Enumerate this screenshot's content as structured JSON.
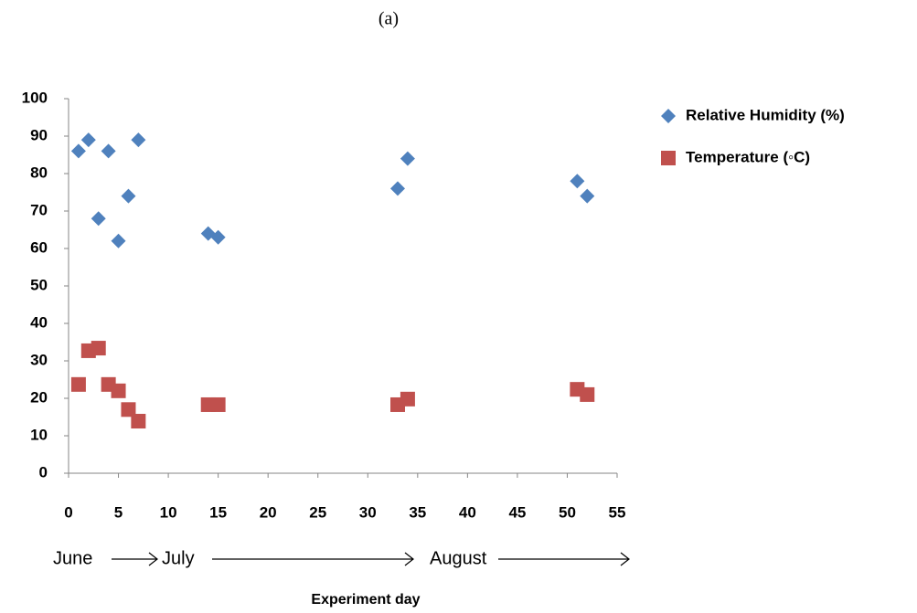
{
  "chart_data": {
    "type": "scatter",
    "panel_label": "(a)",
    "x_label": "Experiment day",
    "annotations": [
      "June",
      "July",
      "August"
    ],
    "series": [
      {
        "name": "Relative Humidity (%)",
        "color": "#4f81bd",
        "marker": "diamond",
        "x": [
          1,
          2,
          3,
          4,
          5,
          6,
          7,
          14,
          15,
          33,
          34,
          51,
          52
        ],
        "values": [
          86,
          89,
          68,
          86,
          62,
          74,
          89,
          64,
          63,
          76,
          84,
          78,
          74
        ]
      },
      {
        "name": "Temperature (◦C)",
        "color": "#c0504d",
        "marker": "square",
        "x": [
          1,
          2,
          3,
          4,
          5,
          6,
          7,
          14,
          15,
          33,
          34,
          51,
          52
        ],
        "values": [
          23.7,
          32.7,
          33.4,
          23.7,
          22,
          17,
          13.9,
          18.3,
          18.3,
          18.3,
          19.8,
          22.4,
          21
        ]
      }
    ],
    "xlim": [
      0,
      55
    ],
    "xticks": [
      0,
      5,
      10,
      15,
      20,
      25,
      30,
      35,
      40,
      45,
      50,
      55
    ],
    "ylim": [
      0,
      100
    ],
    "yticks": [
      0,
      10,
      20,
      30,
      40,
      50,
      60,
      70,
      80,
      90,
      100
    ],
    "grid": false
  }
}
